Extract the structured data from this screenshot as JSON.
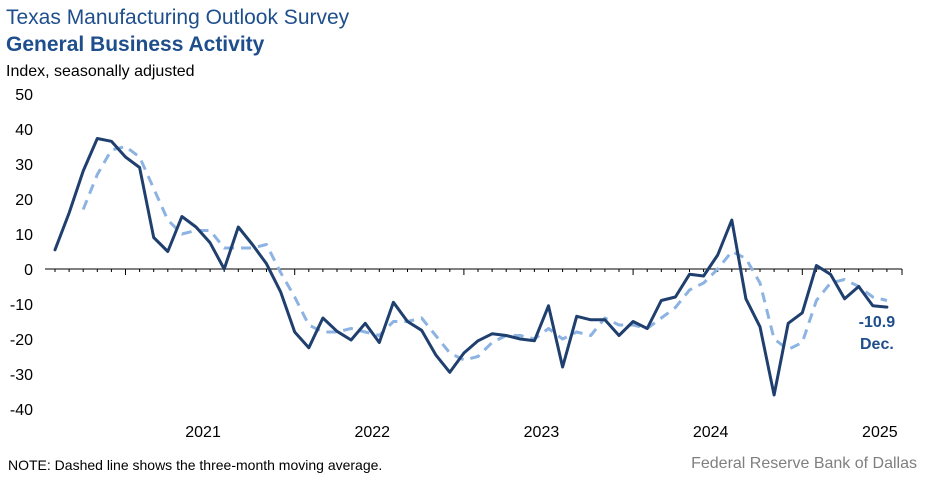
{
  "chart_data": {
    "type": "line",
    "title": "Texas Manufacturing Outlook Survey",
    "subtitle": "General Business Activity",
    "ylabel": "Index, seasonally adjusted",
    "xlabel": "",
    "ylim": [
      -40,
      50
    ],
    "yticks": [
      50,
      40,
      30,
      20,
      10,
      0,
      -10,
      -20,
      -30,
      -40
    ],
    "x_start": "2020-08",
    "year_labels": [
      "2021",
      "2022",
      "2023",
      "2024",
      "2025"
    ],
    "series": [
      {
        "name": "General Business Activity",
        "color": "#1f3f6e",
        "style": "solid",
        "values": [
          5.5,
          16,
          28,
          37.3,
          36.5,
          32,
          29,
          9,
          5,
          15,
          12,
          7.5,
          0,
          12,
          7,
          1.5,
          -6.5,
          -18,
          -22.5,
          -14,
          -17.8,
          -20.3,
          -15.5,
          -21,
          -9.5,
          -15,
          -17.5,
          -24.5,
          -29.5,
          -24,
          -20.5,
          -18.5,
          -19,
          -20,
          -20.5,
          -10.5,
          -28,
          -13.5,
          -14.5,
          -14.5,
          -19,
          -15,
          -17,
          -9,
          -8,
          -1.5,
          -2,
          4,
          14,
          -8.5,
          -16.5,
          -36,
          -15.5,
          -12.5,
          1,
          -1.5,
          -8.5,
          -5,
          -10.5,
          -10.9
        ]
      },
      {
        "name": "Three-month moving average",
        "color": "#8db3e2",
        "style": "dashed",
        "values": [
          null,
          null,
          17,
          27,
          34,
          35,
          32,
          23,
          14,
          10,
          11,
          11,
          6,
          6,
          6,
          7,
          -1,
          -8,
          -16,
          -18,
          -18,
          -17,
          -18,
          -19,
          -15,
          -15,
          -14,
          -19,
          -24,
          -26,
          -25,
          -21,
          -19,
          -19,
          -20,
          -17,
          -20,
          -18,
          -19,
          -14,
          -16,
          -16,
          -17,
          -14,
          -11,
          -6,
          -4,
          0,
          5,
          3,
          -4,
          -20,
          -23,
          -21,
          -9,
          -4,
          -3,
          -5,
          -8,
          -9
        ]
      }
    ],
    "last_value_label": "-10.9",
    "last_period_label": "Dec."
  },
  "note": "NOTE: Dashed line shows the three-month moving average.",
  "source": "Federal Reserve Bank of Dallas"
}
